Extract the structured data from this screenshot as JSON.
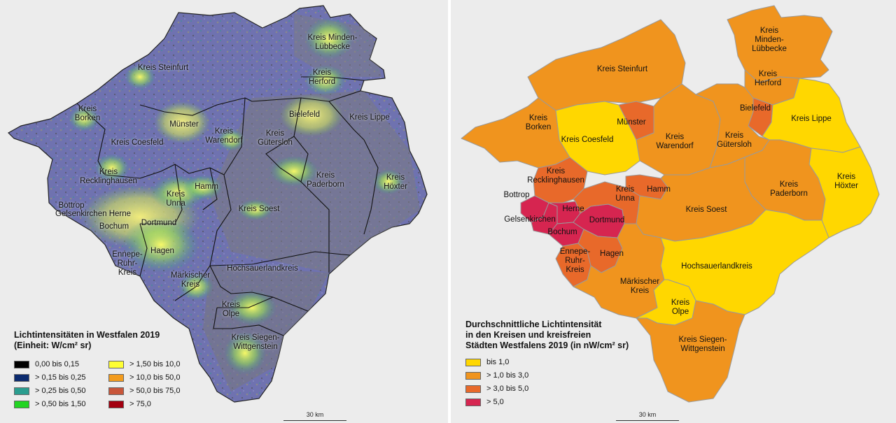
{
  "left_map": {
    "legend_title_line1": "Lichtintensitäten in Westfalen 2019",
    "legend_title_line2": "(Einheit: W/cm² sr)",
    "legend": [
      {
        "label": "0,00 bis 0,15",
        "color": "#000000"
      },
      {
        "label": "> 0,15 bis 0,25",
        "color": "#0b2a6e"
      },
      {
        "label": "> 0,25 bis 0,50",
        "color": "#2a9d8f"
      },
      {
        "label": "> 0,50 bis 1,50",
        "color": "#23d423"
      },
      {
        "label": "> 1,50 bis 10,0",
        "color": "#ffff33"
      },
      {
        "label": "> 10,0 bis 50,0",
        "color": "#f29b1d"
      },
      {
        "label": "> 50,0 bis 75,0",
        "color": "#c8563a"
      },
      {
        "label": "> 75,0",
        "color": "#a30010"
      }
    ],
    "scale_label": "30 km",
    "labels": {
      "minden": [
        "Kreis Minden-",
        "Lübbecke"
      ],
      "steinfurt": [
        "Kreis Steinfurt"
      ],
      "herford": [
        "Kreis",
        "Herford"
      ],
      "borken": [
        "Kreis",
        "Borken"
      ],
      "muenster": [
        "Münster"
      ],
      "bielefeld": [
        "Bielefeld"
      ],
      "lippe": [
        "Kreis Lippe"
      ],
      "warendorf": [
        "Kreis",
        "Warendorf"
      ],
      "guetersloh": [
        "Kreis",
        "Gütersloh"
      ],
      "coesfeld": [
        "Kreis Coesfeld"
      ],
      "recklinghausen": [
        "Kreis",
        "Recklinghausen"
      ],
      "paderborn": [
        "Kreis",
        "Paderborn"
      ],
      "hoexter": [
        "Kreis",
        "Höxter"
      ],
      "hamm": [
        "Hamm"
      ],
      "unna": [
        "Kreis",
        "Unna"
      ],
      "bottrop": [
        "Bottrop"
      ],
      "gelsenkirchen_herne": [
        "Gelsenkirchen Herne"
      ],
      "soest": [
        "Kreis Soest"
      ],
      "bochum": [
        "Bochum"
      ],
      "dortmund": [
        "Dortmund"
      ],
      "hagen": [
        "Hagen"
      ],
      "ennepe": [
        "Ennepe-",
        "Ruhr-",
        "Kreis"
      ],
      "hochsauerland": [
        "Hochsauerlandkreis"
      ],
      "maerkischer": [
        "Märkischer",
        "Kreis"
      ],
      "olpe": [
        "Kreis",
        "Olpe"
      ],
      "siegen": [
        "Kreis Siegen-",
        "Wittgenstein"
      ]
    }
  },
  "right_map": {
    "legend_title_line1": "Durchschnittliche Lichtintensität",
    "legend_title_line2": "in den Kreisen und kreisfreien",
    "legend_title_line3": "Städten Westfalens 2019 (in nW/cm² sr)",
    "legend": [
      {
        "label": "bis 1,0",
        "color": "#ffd700"
      },
      {
        "label": "> 1,0 bis 3,0",
        "color": "#f0941e"
      },
      {
        "label": "> 3,0 bis 5,0",
        "color": "#e8692a"
      },
      {
        "label": "> 5,0",
        "color": "#d62550"
      }
    ],
    "scale_label": "30 km",
    "labels": {
      "minden": [
        "Kreis",
        "Minden-",
        "Lübbecke"
      ],
      "steinfurt": [
        "Kreis Steinfurt"
      ],
      "herford": [
        "Kreis",
        "Herford"
      ],
      "borken": [
        "Kreis",
        "Borken"
      ],
      "muenster": [
        "Münster"
      ],
      "bielefeld": [
        "Bielefeld"
      ],
      "lippe": [
        "Kreis Lippe"
      ],
      "coesfeld": [
        "Kreis Coesfeld"
      ],
      "warendorf": [
        "Kreis",
        "Warendorf"
      ],
      "guetersloh": [
        "Kreis",
        "Gütersloh"
      ],
      "recklinghausen": [
        "Kreis",
        "Recklinghausen"
      ],
      "paderborn": [
        "Kreis",
        "Paderborn"
      ],
      "hoexter": [
        "Kreis",
        "Höxter"
      ],
      "bottrop": [
        "Bottrop"
      ],
      "unna": [
        "Kreis",
        "Unna"
      ],
      "hamm": [
        "Hamm"
      ],
      "herne": [
        "Herne"
      ],
      "soest": [
        "Kreis Soest"
      ],
      "gelsenkirchen": [
        "Gelsenkirchen"
      ],
      "dortmund": [
        "Dortmund"
      ],
      "bochum": [
        "Bochum"
      ],
      "ennepe": [
        "Ennepe-",
        "Ruhr-",
        "Kreis"
      ],
      "hagen": [
        "Hagen"
      ],
      "hochsauerland": [
        "Hochsauerlandkreis"
      ],
      "maerkischer": [
        "Märkischer",
        "Kreis"
      ],
      "olpe": [
        "Kreis",
        "Olpe"
      ],
      "siegen": [
        "Kreis Siegen-",
        "Wittgenstein"
      ]
    },
    "district_classes": {
      "minden": "> 1,0 bis 3,0",
      "steinfurt": "> 1,0 bis 3,0",
      "herford": "> 1,0 bis 3,0",
      "borken": "> 1,0 bis 3,0",
      "muenster": "> 3,0 bis 5,0",
      "bielefeld": "> 3,0 bis 5,0",
      "lippe": "bis 1,0",
      "coesfeld": "bis 1,0",
      "warendorf": "> 1,0 bis 3,0",
      "guetersloh": "> 1,0 bis 3,0",
      "recklinghausen": "> 3,0 bis 5,0",
      "paderborn": "> 1,0 bis 3,0",
      "hoexter": "bis 1,0",
      "bottrop": "> 5,0",
      "gelsenkirchen": "> 5,0",
      "herne": "> 5,0",
      "dortmund": "> 5,0",
      "bochum": "> 5,0",
      "unna": "> 3,0 bis 5,0",
      "hamm": "> 3,0 bis 5,0",
      "soest": "> 1,0 bis 3,0",
      "ennepe": "> 3,0 bis 5,0",
      "hagen": "> 3,0 bis 5,0",
      "hochsauerland": "bis 1,0",
      "maerkischer": "> 1,0 bis 3,0",
      "olpe": "bis 1,0",
      "siegen": "> 1,0 bis 3,0"
    }
  }
}
